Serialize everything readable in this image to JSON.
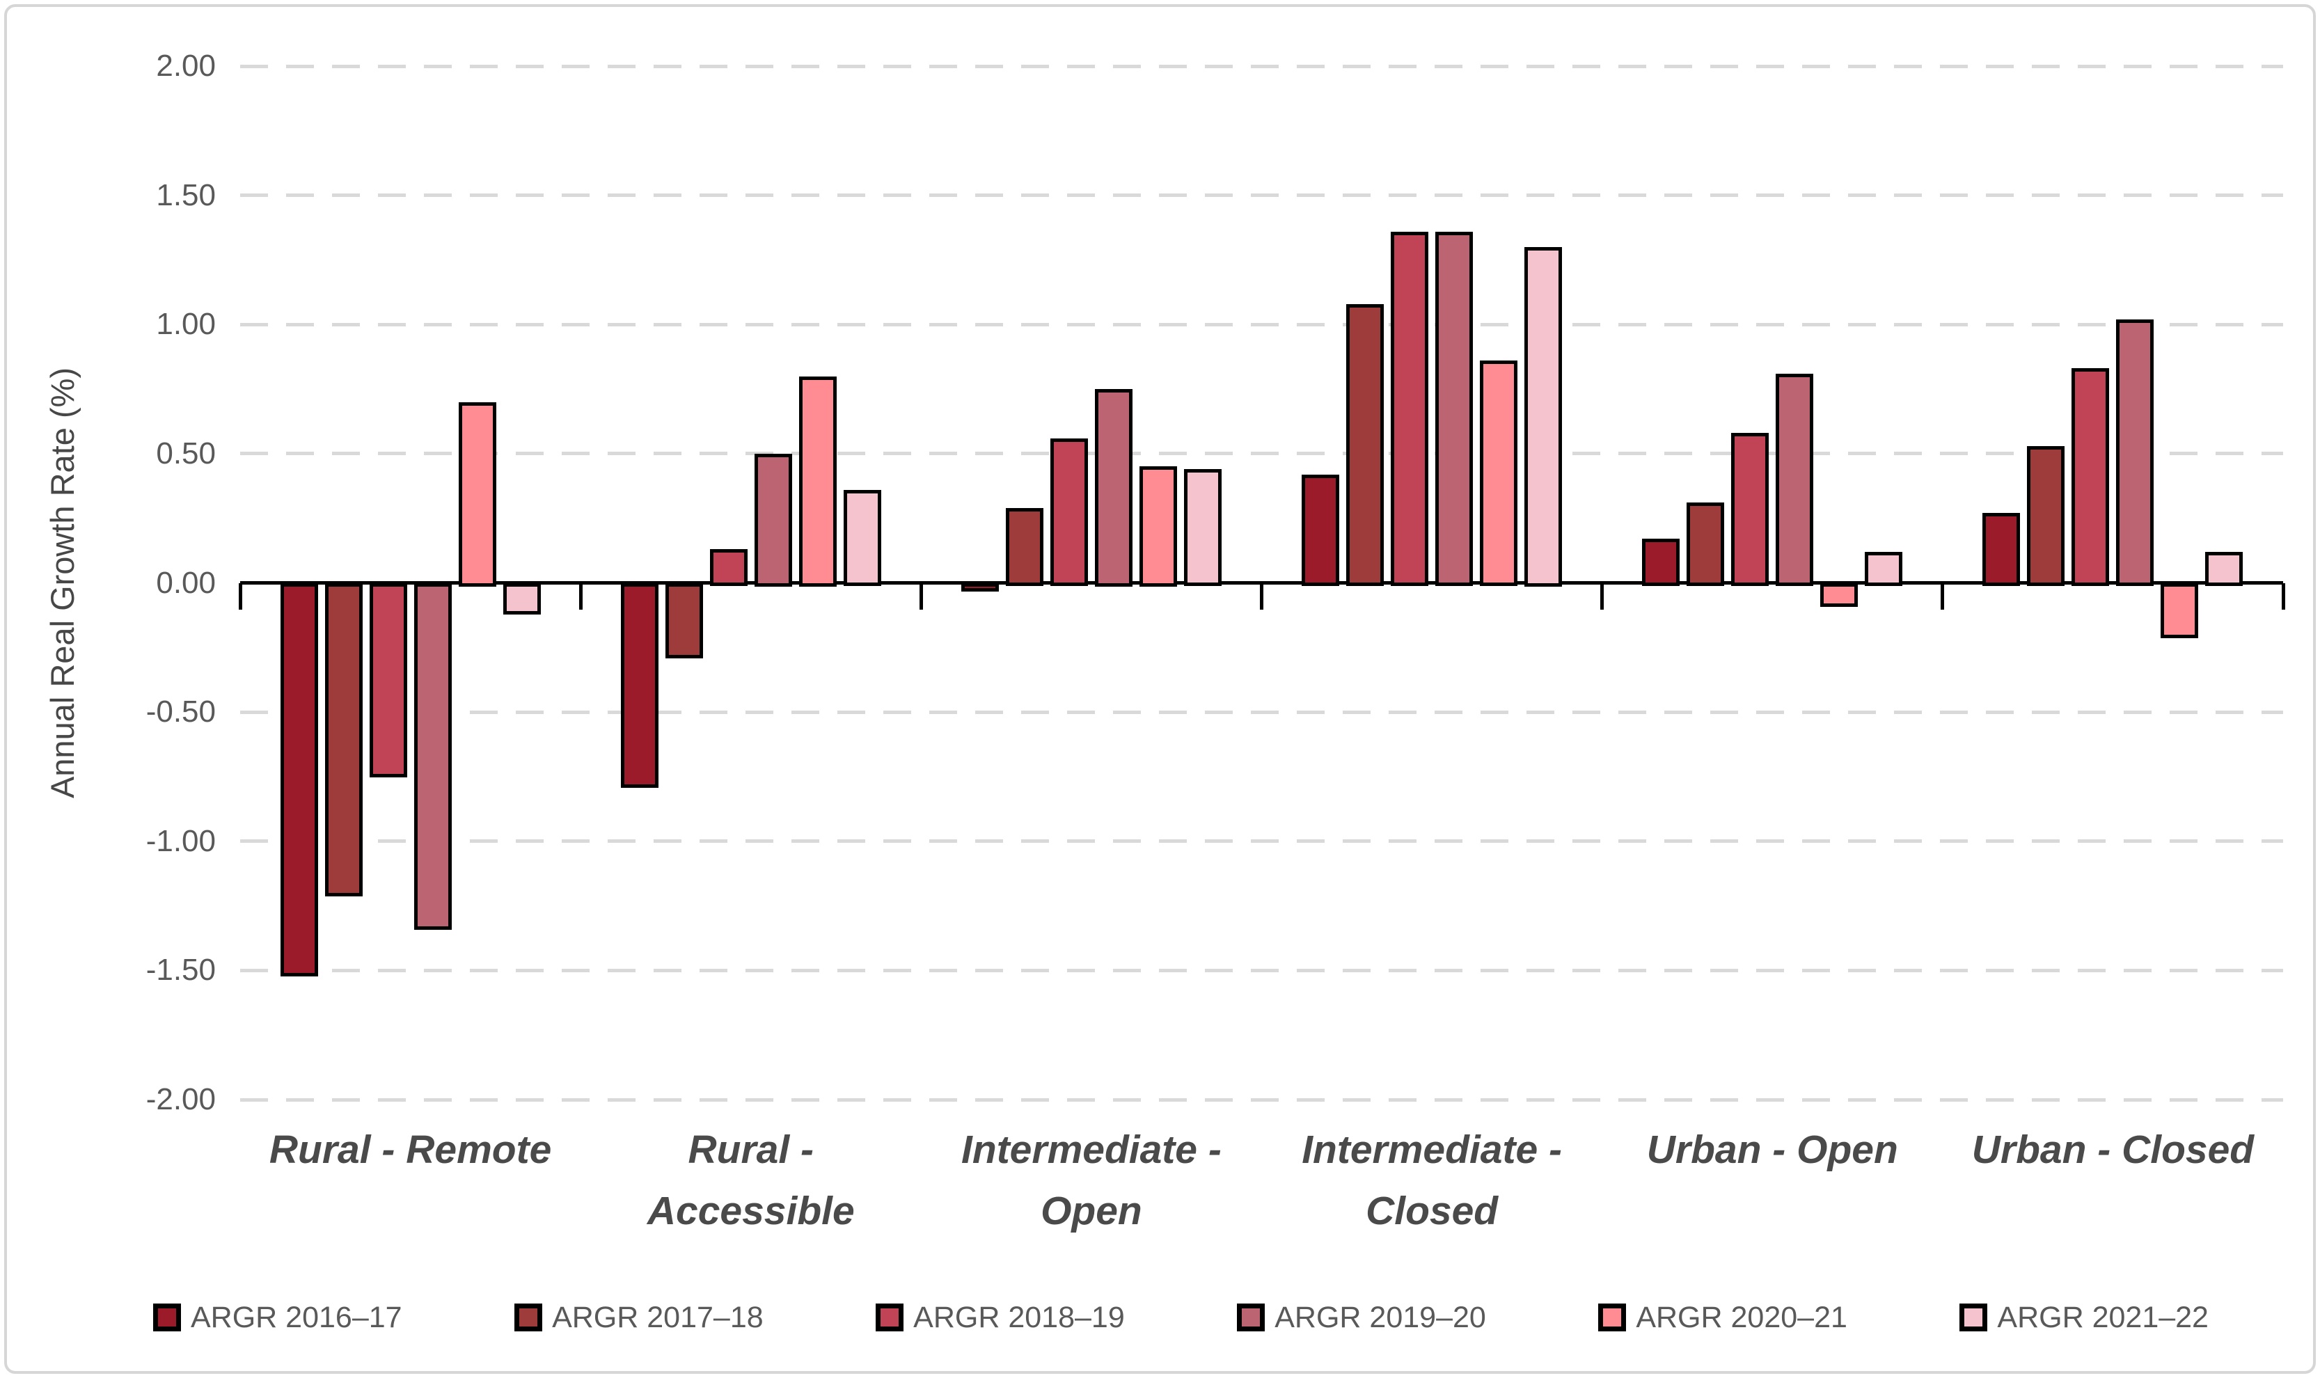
{
  "chart_data": {
    "type": "bar",
    "title": "",
    "xlabel": "",
    "ylabel": "Annual Real Growth Rate (%)",
    "ylim": [
      -2.0,
      2.0
    ],
    "ytick_step": 0.5,
    "yticks": [
      "2.00",
      "1.50",
      "1.00",
      "0.50",
      "0.00",
      "-0.50",
      "-1.00",
      "-1.50",
      "-2.00"
    ],
    "grid": "horizontal-dashed",
    "gridline_color": "#d9d9d9",
    "bar_outline_color": "#000000",
    "legend_position": "bottom",
    "categories": [
      {
        "label": "Rural - Remote",
        "lines": [
          "Rural - Remote"
        ]
      },
      {
        "label": "Rural - Accessible",
        "lines": [
          "Rural -",
          "Accessible"
        ]
      },
      {
        "label": "Intermediate - Open",
        "lines": [
          "Intermediate -",
          "Open"
        ]
      },
      {
        "label": "Intermediate - Closed",
        "lines": [
          "Intermediate -",
          "Closed"
        ]
      },
      {
        "label": "Urban - Open",
        "lines": [
          "Urban - Open"
        ]
      },
      {
        "label": "Urban - Closed",
        "lines": [
          "Urban - Closed"
        ]
      }
    ],
    "series": [
      {
        "name": "ARGR 2016–17",
        "color": "#9b1b2b",
        "values": [
          -1.51,
          -0.78,
          -0.02,
          0.42,
          0.17,
          0.27
        ]
      },
      {
        "name": "ARGR 2017–18",
        "color": "#9e3b3b",
        "values": [
          -1.2,
          -0.28,
          0.29,
          1.08,
          0.31,
          0.53
        ]
      },
      {
        "name": "ARGR 2018–19",
        "color": "#c04356",
        "values": [
          -0.74,
          0.13,
          0.56,
          1.36,
          0.58,
          0.83
        ]
      },
      {
        "name": "ARGR 2019–20",
        "color": "#bc6471",
        "values": [
          -1.33,
          0.5,
          0.75,
          1.36,
          0.81,
          1.02
        ]
      },
      {
        "name": "ARGR 2020–21",
        "color": "#ff8c92",
        "values": [
          0.7,
          0.8,
          0.45,
          0.86,
          -0.08,
          -0.2
        ]
      },
      {
        "name": "ARGR 2021–22",
        "color": "#f5c3cd",
        "values": [
          -0.11,
          0.36,
          0.44,
          1.3,
          0.12,
          0.12
        ]
      }
    ]
  }
}
